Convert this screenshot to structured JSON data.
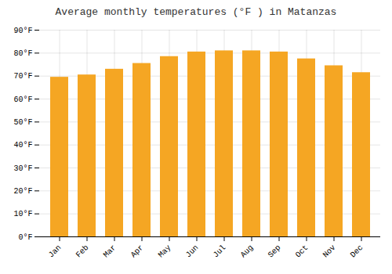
{
  "chart_data": {
    "type": "bar",
    "title": "Average monthly temperatures (°F ) in Matanzas",
    "categories": [
      "Jan",
      "Feb",
      "Mar",
      "Apr",
      "May",
      "Jun",
      "Jul",
      "Aug",
      "Sep",
      "Oct",
      "Nov",
      "Dec"
    ],
    "values": [
      69.5,
      70.5,
      73,
      75.5,
      78.5,
      80.5,
      81,
      81,
      80.5,
      77.5,
      74.5,
      71.5
    ],
    "color": "#F5A623",
    "ylim": [
      0,
      90
    ],
    "yticks": [
      {
        "value": 0,
        "label": "0°F"
      },
      {
        "value": 10,
        "label": "10°F"
      },
      {
        "value": 20,
        "label": "20°F"
      },
      {
        "value": 30,
        "label": "30°F"
      },
      {
        "value": 40,
        "label": "40°F"
      },
      {
        "value": 50,
        "label": "50°F"
      },
      {
        "value": 60,
        "label": "60°F"
      },
      {
        "value": 70,
        "label": "70°F"
      },
      {
        "value": 80,
        "label": "80°F"
      },
      {
        "value": 90,
        "label": "90°F"
      }
    ],
    "grid": true
  }
}
